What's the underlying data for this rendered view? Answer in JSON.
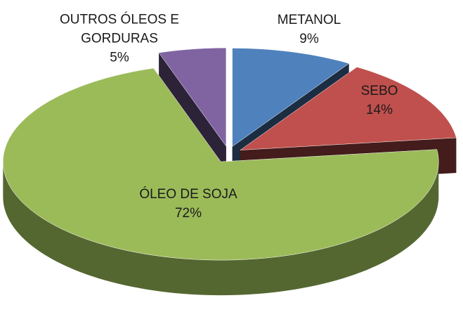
{
  "chart_data": {
    "type": "pie3d",
    "categories": [
      "METANOL",
      "SEBO",
      "ÓLEO DE SOJA",
      "OUTROS ÓLEOS E GORDURAS"
    ],
    "values": [
      9,
      14,
      72,
      5
    ],
    "value_labels": [
      "9%",
      "14%",
      "72%",
      "5%"
    ],
    "colors": [
      "#4f81bd",
      "#c0504d",
      "#9bbb59",
      "#8064a2"
    ]
  }
}
